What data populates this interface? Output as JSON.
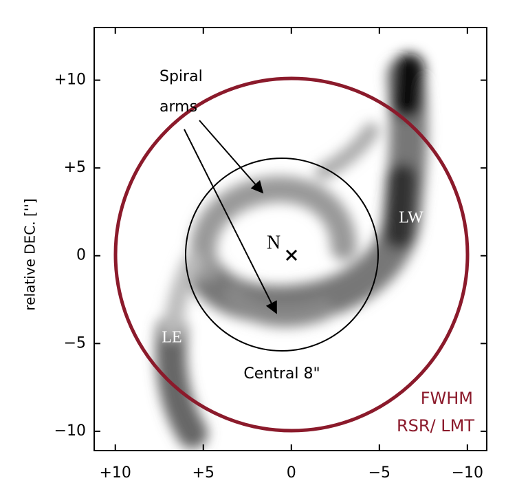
{
  "chart_data": {
    "type": "image",
    "ylabel": "relative DEC. ['']",
    "xlim": [
      11.2,
      -11.1
    ],
    "ylim": [
      -11.1,
      13.0
    ],
    "xticks": [
      {
        "value": 10,
        "label": "+10"
      },
      {
        "value": 5,
        "label": "+5"
      },
      0,
      {
        "value": -5,
        "label": "−5"
      },
      {
        "value": -10,
        "label": "−10"
      }
    ],
    "yticks": [
      {
        "value": 10,
        "label": "+10"
      },
      {
        "value": 5,
        "label": "+5"
      },
      0,
      {
        "value": -5,
        "label": "−5"
      },
      {
        "value": -10,
        "label": "−10"
      }
    ],
    "annotations": {
      "spiral_1": "Spiral",
      "spiral_2": "arms",
      "central": "Central 8\"",
      "lw": "LW",
      "le": "LE",
      "n": "N",
      "fwhm": "FWHM",
      "rsr": "RSR/ LMT"
    }
  }
}
